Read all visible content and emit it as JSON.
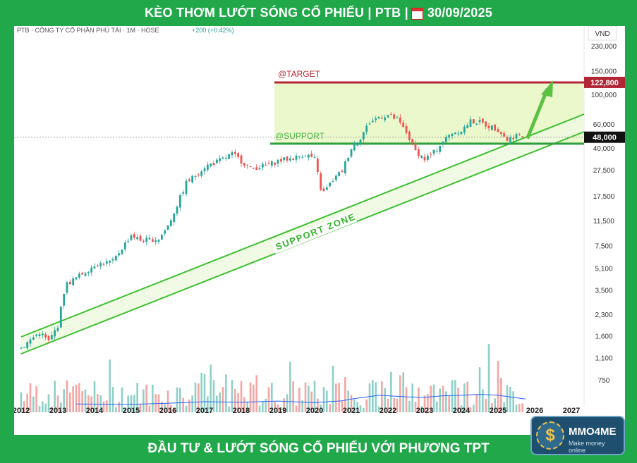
{
  "header": {
    "title_left": "KÈO THƠM LƯỚT SÓNG CỔ PHIẾU | PTB |",
    "date": "30/09/2025"
  },
  "footer": {
    "title": "ĐẦU TƯ & LƯỚT SÓNG CỔ PHIẾU VỚI PHƯƠNG TPT"
  },
  "logo": {
    "name": "MMO4ME",
    "tagline": "Make money online",
    "glyph": "$"
  },
  "chart_data": {
    "type": "candlestick",
    "info_line": "PTB · CÔNG TY CỔ PHẦN PHÚ TÀI · 1M · HOSE",
    "change": "+200 (+0.42%)",
    "currency": "VND",
    "y_scale": "log",
    "ylim": [
      750,
      230000
    ],
    "y_ticks": [
      230000,
      150000,
      100000,
      60000,
      40000,
      27500,
      17500,
      11500,
      7500,
      5100,
      3500,
      2300,
      1600,
      1100,
      750
    ],
    "y_tick_labels": [
      "230,000",
      "150,000",
      "100,000",
      "60,000",
      "40,000",
      "27,500",
      "17,500",
      "11,500",
      "7,500",
      "5,100",
      "3,500",
      "2,300",
      "1,600",
      "1,100",
      "750"
    ],
    "x_ticks": [
      "2012",
      "2013",
      "2014",
      "2015",
      "2016",
      "2017",
      "2018",
      "2019",
      "2020",
      "2021",
      "2022",
      "2023",
      "2024",
      "2025",
      "2026",
      "2027"
    ],
    "target": {
      "label": "@TARGET",
      "value": 122800,
      "value_label": "122,800",
      "color": "#b32636"
    },
    "support": {
      "label": "@SUPPORT",
      "value": 43000,
      "color": "#2e9e3e"
    },
    "last_price": {
      "value": 48000,
      "value_label": "48,000"
    },
    "zone_label": "SUPPORT ZONE",
    "colors": {
      "up": "#26a69a",
      "down": "#ef5350",
      "volume_up": "#8fd0c7",
      "volume_down": "#f4a6a4",
      "volume_ma": "#2962ff",
      "channel": "#3cc02e"
    },
    "price_path": [
      [
        2012.0,
        1300
      ],
      [
        2012.5,
        1700
      ],
      [
        2012.75,
        1450
      ],
      [
        2013.0,
        1900
      ],
      [
        2013.2,
        3800
      ],
      [
        2013.5,
        4300
      ],
      [
        2013.75,
        4800
      ],
      [
        2014.0,
        5400
      ],
      [
        2014.5,
        5700
      ],
      [
        2014.75,
        7200
      ],
      [
        2015.0,
        9000
      ],
      [
        2015.25,
        8200
      ],
      [
        2015.75,
        8400
      ],
      [
        2016.0,
        10500
      ],
      [
        2016.25,
        15000
      ],
      [
        2016.5,
        22000
      ],
      [
        2016.75,
        25000
      ],
      [
        2017.0,
        29000
      ],
      [
        2017.5,
        33000
      ],
      [
        2017.75,
        36000
      ],
      [
        2018.0,
        32000
      ],
      [
        2018.25,
        28000
      ],
      [
        2018.5,
        29000
      ],
      [
        2018.75,
        30000
      ],
      [
        2019.0,
        32000
      ],
      [
        2019.5,
        34000
      ],
      [
        2019.75,
        36000
      ],
      [
        2020.0,
        33000
      ],
      [
        2020.2,
        18000
      ],
      [
        2020.5,
        23000
      ],
      [
        2020.75,
        27000
      ],
      [
        2021.0,
        40000
      ],
      [
        2021.25,
        48000
      ],
      [
        2021.5,
        62000
      ],
      [
        2021.75,
        68000
      ],
      [
        2022.0,
        70000
      ],
      [
        2022.25,
        65000
      ],
      [
        2022.5,
        52000
      ],
      [
        2022.75,
        38000
      ],
      [
        2023.0,
        33000
      ],
      [
        2023.25,
        37000
      ],
      [
        2023.5,
        45000
      ],
      [
        2023.75,
        52000
      ],
      [
        2024.0,
        54000
      ],
      [
        2024.25,
        63000
      ],
      [
        2024.5,
        62000
      ],
      [
        2024.75,
        58000
      ],
      [
        2025.0,
        55000
      ],
      [
        2025.25,
        46000
      ],
      [
        2025.5,
        50000
      ],
      [
        2025.7,
        48000
      ]
    ],
    "volume_ma": [
      [
        2013.5,
        700
      ],
      [
        2015.0,
        690
      ],
      [
        2016.0,
        720
      ],
      [
        2017.0,
        770
      ],
      [
        2018.0,
        750
      ],
      [
        2019.0,
        790
      ],
      [
        2020.0,
        740
      ],
      [
        2020.75,
        800
      ],
      [
        2021.0,
        860
      ],
      [
        2021.75,
        1000
      ],
      [
        2022.5,
        940
      ],
      [
        2023.0,
        920
      ],
      [
        2023.5,
        980
      ],
      [
        2024.0,
        1000
      ],
      [
        2024.5,
        1040
      ],
      [
        2025.0,
        1000
      ],
      [
        2025.75,
        860
      ]
    ]
  }
}
